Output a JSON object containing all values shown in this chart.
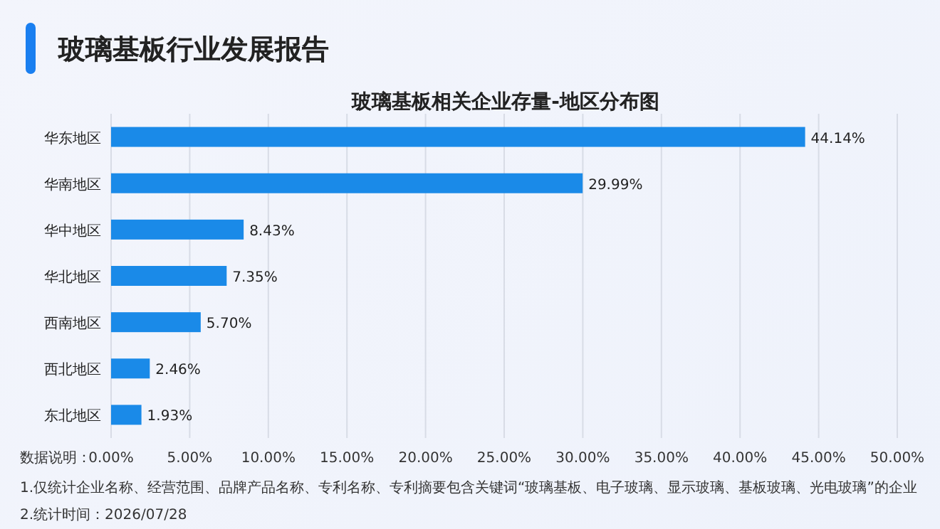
{
  "chart_data": {
    "type": "bar",
    "orientation": "horizontal",
    "title": "玻璃基板行业发展报告",
    "subtitle": "玻璃基板相关企业存量-地区分布图",
    "categories": [
      "华东地区",
      "华南地区",
      "华中地区",
      "华北地区",
      "西南地区",
      "西北地区",
      "东北地区"
    ],
    "values": [
      44.14,
      29.99,
      8.43,
      7.35,
      5.7,
      2.46,
      1.93
    ],
    "value_labels": [
      "44.14%",
      "29.99%",
      "8.43%",
      "7.35%",
      "5.70%",
      "2.46%",
      "1.93%"
    ],
    "color": "#1a8ae8",
    "xlim": [
      0,
      50
    ],
    "xticks": [
      {
        "value": 0,
        "label": "0.00%"
      },
      {
        "value": 5,
        "label": "5.00%"
      },
      {
        "value": 10,
        "label": "10.00%"
      },
      {
        "value": 15,
        "label": "15.00%"
      },
      {
        "value": 20,
        "label": "20.00%"
      },
      {
        "value": 25,
        "label": "25.00%"
      },
      {
        "value": 30,
        "label": "30.00%"
      },
      {
        "value": 35,
        "label": "35.00%"
      },
      {
        "value": 40,
        "label": "40.00%"
      },
      {
        "value": 45,
        "label": "45.00%"
      },
      {
        "value": 50,
        "label": "50.00%"
      }
    ],
    "grid": "x",
    "annotations": [
      "数据说明：",
      "1.仅统计企业名称、经营范围、品牌产品名称、专利名称、专利摘要包含关键词“玻璃基板、电子玻璃、显示玻璃、基板玻璃、光电玻璃”的企业",
      "2.统计时间：2026/07/28"
    ]
  }
}
